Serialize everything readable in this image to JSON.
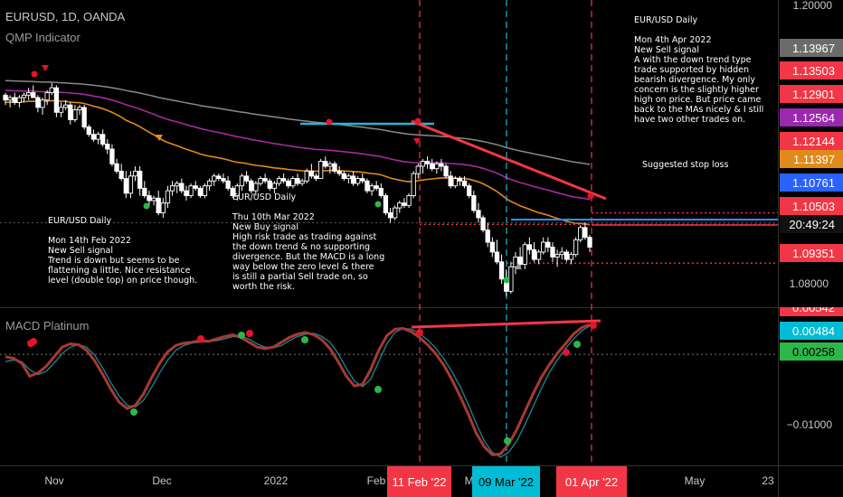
{
  "header": {
    "symbol_line": "EURUSD, 1D, OANDA",
    "indicator_name": "QMP Indicator",
    "macd_name": "MACD Platinum"
  },
  "annotations": [
    {
      "id": "note-feb14",
      "text": "EUR/USD Daily\n\nMon 14th Feb 2022\nNew Sell signal\nTrend is down but seems to be\nflattening a little. Nice resistance\nlevel (double top) on price though."
    },
    {
      "id": "note-mar10",
      "text": "EUR/USD Daily\n\nThu 10th Mar 2022\nNew Buy signal\nHigh risk trade as trading against\nthe down trend & no supporting\ndivergence. But the MACD is a long\nway below the zero level & there\nis still a partial Sell trade on, so\nworth the risk."
    },
    {
      "id": "note-apr4",
      "text": "EUR/USD Daily\n\nMon 4th Apr 2022\nNew Sell signal\nA with the down trend type\ntrade supported by hidden\nbearish divergence. My only\nconcern is the slightly higher\nhigh on price. But price came\nback to the MAs nicely & I still\nhave two other trades on."
    },
    {
      "id": "stop-label",
      "text": "Suggested stop loss"
    }
  ],
  "colors": {
    "bg": "#000000",
    "up": "#ffffff",
    "down": "#ffffff",
    "grid": "#1f1f1f",
    "ma_gray": "#8a8a8a",
    "ma_magenta": "#a62a9e",
    "ma_orange": "#e08a1a",
    "red": "#f23645",
    "blue": "#2962ff",
    "cyan": "#22b8d6",
    "macd_line": "#a83a32",
    "signal_line": "#1b7f8f",
    "dot_red": "#e8132b",
    "dot_green": "#2bb84a",
    "tri_orange": "#f0861a",
    "tri_gray": "#9a9a9a"
  },
  "chart_data": [
    {
      "type": "candlestick",
      "title": "EURUSD, 1D, OANDA",
      "subtitle": "QMP Indicator",
      "ylim": [
        1.0755,
        1.2008
      ],
      "y_ticks": [
        1.2,
        1.08
      ],
      "x_labels": [
        "Nov",
        "Dec",
        "2022",
        "Feb",
        "Mar",
        "Apr '22",
        "May",
        "23"
      ],
      "price_labels": [
        {
          "text": "1.13967",
          "value": 1.13967,
          "color": "gray"
        },
        {
          "text": "1.13503",
          "value": 1.13503,
          "color": "red"
        },
        {
          "text": "1.12901",
          "value": 1.12901,
          "color": "red"
        },
        {
          "text": "1.12564",
          "value": 1.12564,
          "color": "magenta"
        },
        {
          "text": "1.12144",
          "value": 1.12144,
          "color": "red"
        },
        {
          "text": "1.11397",
          "value": 1.11397,
          "color": "orange"
        },
        {
          "text": "1.10761",
          "value": 1.10761,
          "color": "blue"
        },
        {
          "text": "1.10503",
          "value": 1.10503,
          "color": "red"
        },
        {
          "text": "20:49:24",
          "value": 1.0998,
          "color": "black"
        },
        {
          "text": "1.09351",
          "value": 1.09351,
          "color": "red"
        }
      ],
      "date_flags": [
        {
          "text": "11 Feb '22",
          "color": "red"
        },
        {
          "text": "09 Mar '22",
          "color": "cyan"
        },
        {
          "text": "01 Apr '22",
          "color": "red"
        }
      ],
      "levels": [
        {
          "name": "stop loss",
          "value": 1.114,
          "style": "dotted red"
        },
        {
          "name": "upper dotted",
          "value": 1.1093,
          "style": "dotted red"
        },
        {
          "name": "entry",
          "value": 1.1,
          "style": "solid red"
        },
        {
          "name": "target",
          "value": 1.0935,
          "style": "dotted red"
        },
        {
          "name": "blue support",
          "value": 1.1022,
          "style": "solid blue"
        }
      ],
      "candles_ohlc": [
        [
          1.162,
          1.163,
          1.158,
          1.16
        ],
        [
          1.16,
          1.162,
          1.157,
          1.161
        ],
        [
          1.161,
          1.163,
          1.158,
          1.159
        ],
        [
          1.159,
          1.162,
          1.157,
          1.161
        ],
        [
          1.161,
          1.163,
          1.159,
          1.162
        ],
        [
          1.162,
          1.165,
          1.16,
          1.163
        ],
        [
          1.163,
          1.166,
          1.161,
          1.161
        ],
        [
          1.161,
          1.162,
          1.155,
          1.157
        ],
        [
          1.157,
          1.161,
          1.154,
          1.16
        ],
        [
          1.16,
          1.164,
          1.158,
          1.163
        ],
        [
          1.163,
          1.167,
          1.162,
          1.165
        ],
        [
          1.165,
          1.166,
          1.153,
          1.155
        ],
        [
          1.155,
          1.159,
          1.153,
          1.157
        ],
        [
          1.157,
          1.16,
          1.156,
          1.158
        ],
        [
          1.158,
          1.159,
          1.15,
          1.152
        ],
        [
          1.152,
          1.158,
          1.151,
          1.156
        ],
        [
          1.156,
          1.158,
          1.154,
          1.157
        ],
        [
          1.157,
          1.158,
          1.148,
          1.149
        ],
        [
          1.149,
          1.15,
          1.145,
          1.146
        ],
        [
          1.146,
          1.148,
          1.143,
          1.144
        ],
        [
          1.144,
          1.147,
          1.142,
          1.146
        ],
        [
          1.146,
          1.148,
          1.141,
          1.142
        ],
        [
          1.142,
          1.144,
          1.138,
          1.14
        ],
        [
          1.14,
          1.142,
          1.133,
          1.134
        ],
        [
          1.134,
          1.136,
          1.13,
          1.131
        ],
        [
          1.131,
          1.134,
          1.127,
          1.128
        ],
        [
          1.128,
          1.131,
          1.12,
          1.122
        ],
        [
          1.122,
          1.131,
          1.12,
          1.129
        ],
        [
          1.129,
          1.133,
          1.127,
          1.131
        ],
        [
          1.131,
          1.133,
          1.121,
          1.124
        ],
        [
          1.124,
          1.127,
          1.12,
          1.121
        ],
        [
          1.121,
          1.123,
          1.117,
          1.119
        ],
        [
          1.119,
          1.121,
          1.117,
          1.12
        ],
        [
          1.12,
          1.123,
          1.113,
          1.114
        ],
        [
          1.114,
          1.12,
          1.112,
          1.118
        ],
        [
          1.118,
          1.125,
          1.116,
          1.123
        ],
        [
          1.123,
          1.127,
          1.121,
          1.125
        ],
        [
          1.125,
          1.127,
          1.122,
          1.126
        ],
        [
          1.126,
          1.128,
          1.122,
          1.123
        ],
        [
          1.123,
          1.125,
          1.119,
          1.121
        ],
        [
          1.121,
          1.126,
          1.12,
          1.125
        ],
        [
          1.125,
          1.127,
          1.123,
          1.124
        ],
        [
          1.124,
          1.125,
          1.12,
          1.121
        ],
        [
          1.121,
          1.126,
          1.12,
          1.125
        ],
        [
          1.125,
          1.128,
          1.123,
          1.127
        ],
        [
          1.127,
          1.13,
          1.125,
          1.129
        ],
        [
          1.129,
          1.13,
          1.127,
          1.128
        ],
        [
          1.128,
          1.13,
          1.126,
          1.127
        ],
        [
          1.127,
          1.129,
          1.123,
          1.124
        ],
        [
          1.124,
          1.125,
          1.12,
          1.121
        ],
        [
          1.121,
          1.126,
          1.119,
          1.125
        ],
        [
          1.125,
          1.13,
          1.123,
          1.129
        ],
        [
          1.129,
          1.131,
          1.126,
          1.127
        ],
        [
          1.127,
          1.128,
          1.122,
          1.123
        ],
        [
          1.123,
          1.127,
          1.121,
          1.126
        ],
        [
          1.126,
          1.129,
          1.125,
          1.128
        ],
        [
          1.128,
          1.13,
          1.126,
          1.127
        ],
        [
          1.127,
          1.128,
          1.123,
          1.124
        ],
        [
          1.124,
          1.127,
          1.122,
          1.126
        ],
        [
          1.126,
          1.129,
          1.125,
          1.128
        ],
        [
          1.128,
          1.13,
          1.126,
          1.127
        ],
        [
          1.127,
          1.128,
          1.124,
          1.125
        ],
        [
          1.125,
          1.129,
          1.124,
          1.128
        ],
        [
          1.128,
          1.13,
          1.125,
          1.126
        ],
        [
          1.126,
          1.128,
          1.125,
          1.127
        ],
        [
          1.127,
          1.132,
          1.126,
          1.131
        ],
        [
          1.131,
          1.134,
          1.128,
          1.129
        ],
        [
          1.129,
          1.13,
          1.127,
          1.128
        ],
        [
          1.128,
          1.136,
          1.128,
          1.135
        ],
        [
          1.135,
          1.137,
          1.132,
          1.133
        ],
        [
          1.133,
          1.135,
          1.13,
          1.134
        ],
        [
          1.134,
          1.135,
          1.13,
          1.131
        ],
        [
          1.131,
          1.133,
          1.129,
          1.13
        ],
        [
          1.13,
          1.131,
          1.127,
          1.128
        ],
        [
          1.128,
          1.13,
          1.126,
          1.129
        ],
        [
          1.129,
          1.131,
          1.125,
          1.126
        ],
        [
          1.126,
          1.129,
          1.125,
          1.128
        ],
        [
          1.128,
          1.13,
          1.126,
          1.127
        ],
        [
          1.127,
          1.128,
          1.122,
          1.123
        ],
        [
          1.123,
          1.126,
          1.121,
          1.125
        ],
        [
          1.125,
          1.127,
          1.123,
          1.124
        ],
        [
          1.124,
          1.126,
          1.12,
          1.121
        ],
        [
          1.121,
          1.122,
          1.113,
          1.114
        ],
        [
          1.114,
          1.116,
          1.11,
          1.112
        ],
        [
          1.112,
          1.117,
          1.111,
          1.116
        ],
        [
          1.116,
          1.119,
          1.114,
          1.118
        ],
        [
          1.118,
          1.12,
          1.116,
          1.117
        ],
        [
          1.117,
          1.122,
          1.116,
          1.121
        ],
        [
          1.121,
          1.131,
          1.12,
          1.13
        ],
        [
          1.13,
          1.134,
          1.128,
          1.133
        ],
        [
          1.133,
          1.136,
          1.13,
          1.135
        ],
        [
          1.135,
          1.137,
          1.132,
          1.134
        ],
        [
          1.134,
          1.136,
          1.131,
          1.132
        ],
        [
          1.132,
          1.135,
          1.13,
          1.134
        ],
        [
          1.134,
          1.136,
          1.131,
          1.133
        ],
        [
          1.133,
          1.134,
          1.128,
          1.129
        ],
        [
          1.129,
          1.131,
          1.124,
          1.125
        ],
        [
          1.125,
          1.129,
          1.124,
          1.128
        ],
        [
          1.128,
          1.129,
          1.125,
          1.127
        ],
        [
          1.127,
          1.129,
          1.124,
          1.125
        ],
        [
          1.125,
          1.126,
          1.12,
          1.121
        ],
        [
          1.121,
          1.123,
          1.114,
          1.115
        ],
        [
          1.115,
          1.118,
          1.11,
          1.112
        ],
        [
          1.112,
          1.113,
          1.106,
          1.107
        ],
        [
          1.107,
          1.11,
          1.1,
          1.102
        ],
        [
          1.102,
          1.104,
          1.096,
          1.098
        ],
        [
          1.098,
          1.103,
          1.093,
          1.094
        ],
        [
          1.094,
          1.097,
          1.085,
          1.087
        ],
        [
          1.087,
          1.091,
          1.08,
          1.082
        ],
        [
          1.082,
          1.094,
          1.081,
          1.092
        ],
        [
          1.092,
          1.098,
          1.089,
          1.096
        ],
        [
          1.096,
          1.1,
          1.091,
          1.093
        ],
        [
          1.093,
          1.102,
          1.091,
          1.101
        ],
        [
          1.101,
          1.104,
          1.097,
          1.099
        ],
        [
          1.099,
          1.102,
          1.094,
          1.095
        ],
        [
          1.095,
          1.099,
          1.093,
          1.098
        ],
        [
          1.098,
          1.104,
          1.097,
          1.102
        ],
        [
          1.102,
          1.104,
          1.098,
          1.1
        ],
        [
          1.1,
          1.102,
          1.094,
          1.096
        ],
        [
          1.096,
          1.099,
          1.092,
          1.097
        ],
        [
          1.097,
          1.1,
          1.095,
          1.098
        ],
        [
          1.098,
          1.099,
          1.094,
          1.095
        ],
        [
          1.095,
          1.098,
          1.093,
          1.097
        ],
        [
          1.097,
          1.104,
          1.096,
          1.103
        ],
        [
          1.103,
          1.109,
          1.102,
          1.108
        ],
        [
          1.108,
          1.11,
          1.103,
          1.104
        ],
        [
          1.104,
          1.105,
          1.098,
          1.1
        ]
      ]
    },
    {
      "type": "line",
      "title": "MACD Platinum",
      "ylim": [
        -0.0128,
        0.0066
      ],
      "y_ticks": [
        -0.01
      ],
      "value_labels": [
        {
          "text": "0.00542",
          "value": 0.00542,
          "color": "red"
        },
        {
          "text": "0.00484",
          "value": 0.00484,
          "color": "cyan"
        },
        {
          "text": "0.00258",
          "value": 0.00258,
          "color": "green"
        }
      ],
      "series": [
        {
          "values": [
            0.0006,
            0.0004,
            -0.0002,
            -0.0018,
            -0.0014,
            -0.0006,
            0.0006,
            0.0018,
            0.0022,
            0.0021,
            0.0014,
            0.0001,
            -0.0016,
            -0.0034,
            -0.005,
            -0.0058,
            -0.0054,
            -0.004,
            -0.002,
            -0.0002,
            0.0012,
            0.002,
            0.0023,
            0.0024,
            0.0026,
            0.0025,
            0.0028,
            0.0031,
            0.0033,
            0.003,
            0.0024,
            0.0018,
            0.0016,
            0.0018,
            0.0024,
            0.003,
            0.0034,
            0.0036,
            0.0033,
            0.0027,
            0.0016,
            0.0,
            -0.0018,
            -0.003,
            -0.0028,
            -0.001,
            0.0014,
            0.0032,
            0.004,
            0.0041,
            0.0037,
            0.003,
            0.0021,
            0.001,
            -0.0004,
            -0.0022,
            -0.0042,
            -0.0064,
            -0.0088,
            -0.0105,
            -0.0115,
            -0.0114,
            -0.0102,
            -0.0084,
            -0.0062,
            -0.004,
            -0.002,
            -0.0004,
            0.001,
            0.0022,
            0.0034,
            0.0042,
            0.0046
          ]
        },
        {
          "values": [
            0.0,
            0.0002,
            0.0,
            -0.001,
            -0.0016,
            -0.0012,
            -0.0002,
            0.001,
            0.0018,
            0.0021,
            0.0018,
            0.0008,
            -0.0008,
            -0.0026,
            -0.0042,
            -0.0054,
            -0.0056,
            -0.0048,
            -0.0032,
            -0.0014,
            0.0002,
            0.0014,
            0.002,
            0.0023,
            0.0024,
            0.0025,
            0.0026,
            0.0028,
            0.0031,
            0.0031,
            0.0028,
            0.0022,
            0.0018,
            0.0017,
            0.002,
            0.0026,
            0.0031,
            0.0034,
            0.0035,
            0.0031,
            0.0024,
            0.001,
            -0.0008,
            -0.0024,
            -0.0031,
            -0.0022,
            0.0,
            0.0022,
            0.0036,
            0.0041,
            0.004,
            0.0035,
            0.0027,
            0.0017,
            0.0004,
            -0.0012,
            -0.003,
            -0.0052,
            -0.0076,
            -0.0098,
            -0.0112,
            -0.0118,
            -0.0112,
            -0.0098,
            -0.0078,
            -0.0056,
            -0.0034,
            -0.0014,
            0.0002,
            0.0016,
            0.0028,
            0.0038,
            0.0044
          ]
        }
      ]
    }
  ]
}
